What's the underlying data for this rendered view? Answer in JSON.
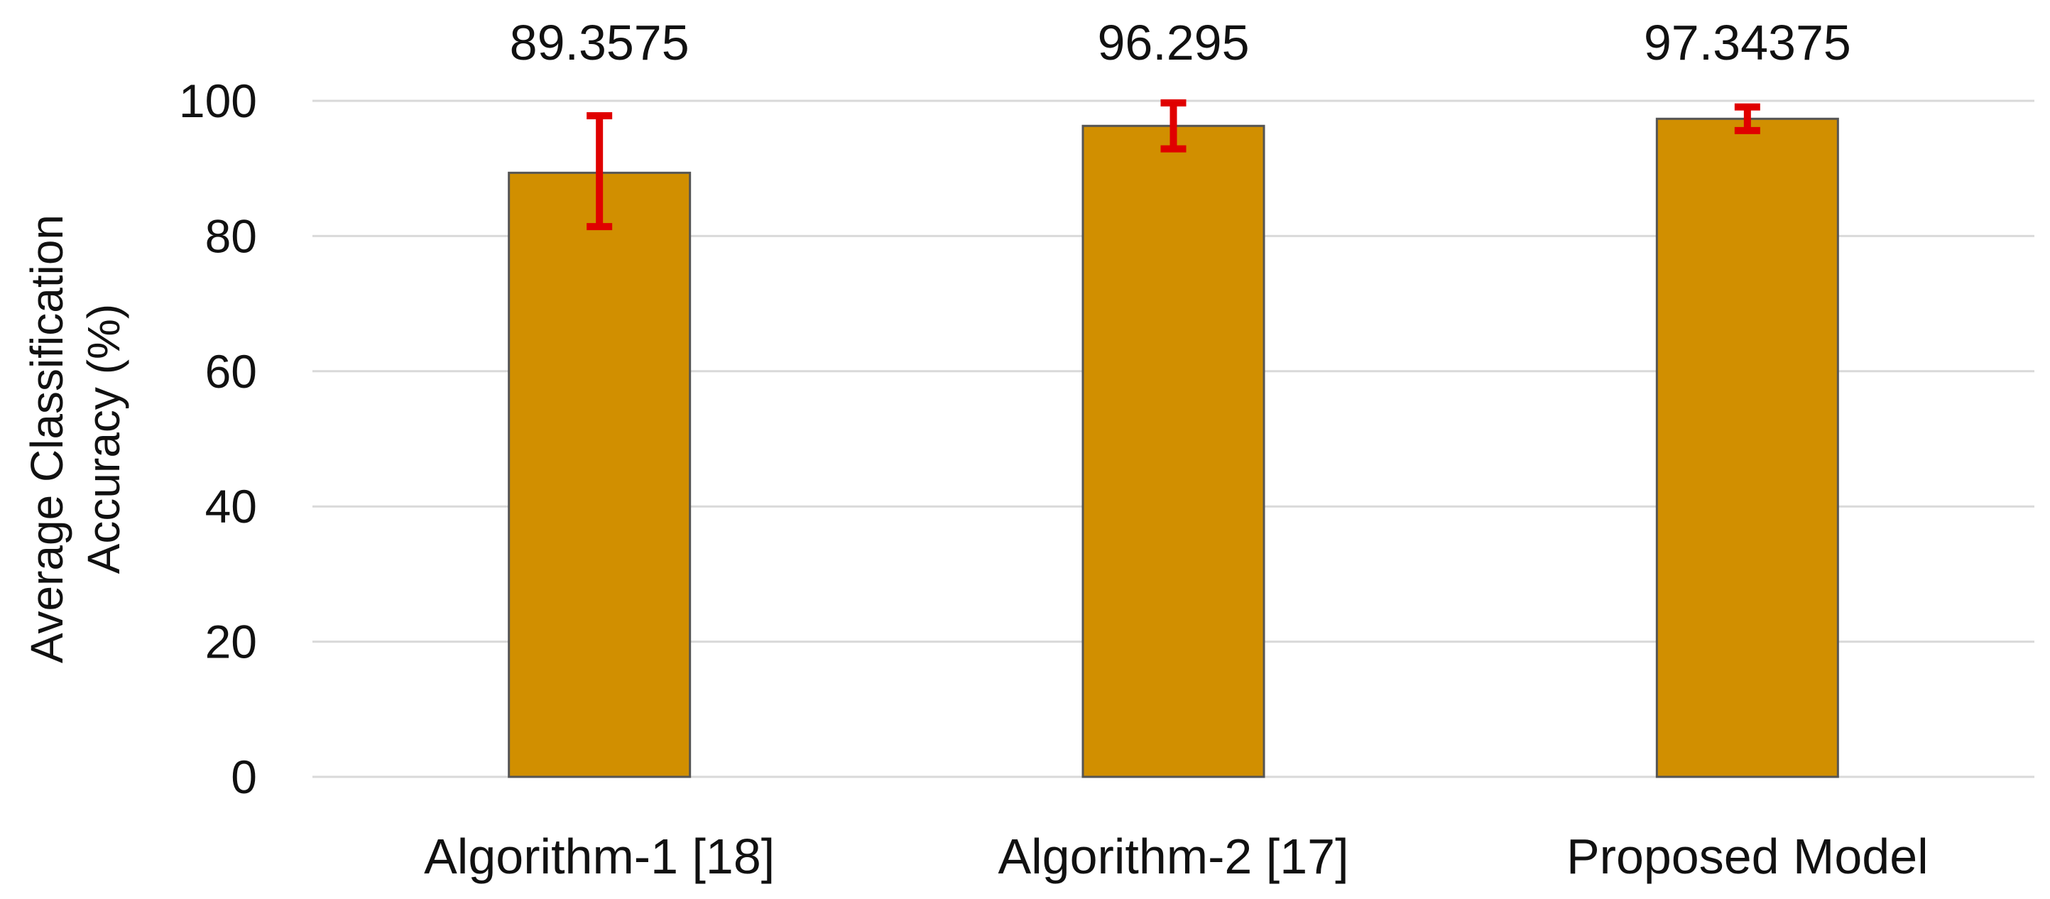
{
  "chart_data": {
    "type": "bar",
    "title": "",
    "xlabel": "",
    "ylabel_lines": [
      "Average Classification",
      "Accuracy (%)"
    ],
    "categories": [
      "Algorithm-1 [18]",
      "Algorithm-2 [17]",
      "Proposed Model"
    ],
    "values": [
      89.3575,
      96.295,
      97.34375
    ],
    "data_labels": [
      "89.3575",
      "96.295",
      "97.34375"
    ],
    "error_bars": [
      {
        "low": 81.4,
        "high": 97.8
      },
      {
        "low": 92.9,
        "high": 99.7
      },
      {
        "low": 95.6,
        "high": 99.1
      }
    ],
    "ylim": [
      0,
      100
    ],
    "yticks": [
      0,
      20,
      40,
      60,
      80,
      100
    ],
    "ytick_labels": [
      "0",
      "20",
      "40",
      "60",
      "80",
      "100"
    ],
    "grid": true,
    "legend": "none",
    "colors": {
      "bar": "#D18F00",
      "error_bar": "#E00000"
    }
  }
}
